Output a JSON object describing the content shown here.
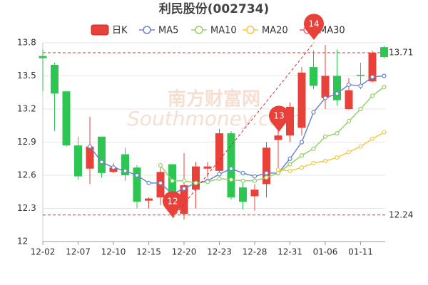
{
  "chart_data": {
    "type": "candlestick",
    "title": "利民股份(002734)",
    "watermark": [
      "南方财富网",
      "Southmoney.com"
    ],
    "categories": [
      "12-02",
      null,
      null,
      "12-07",
      null,
      null,
      "12-10",
      null,
      null,
      "12-15",
      null,
      null,
      "12-20",
      null,
      null,
      "12-23",
      null,
      null,
      "12-28",
      null,
      null,
      "12-31",
      null,
      null,
      "01-06",
      null,
      null,
      "01-11",
      null,
      null
    ],
    "candle_name": "日K",
    "up_color": "#e8413a",
    "down_color": "#2dc653",
    "open": [
      13.68,
      13.6,
      13.36,
      12.87,
      12.66,
      12.95,
      12.63,
      12.79,
      12.67,
      12.37,
      12.4,
      12.7,
      12.25,
      12.47,
      12.66,
      12.64,
      12.98,
      12.49,
      12.41,
      12.52,
      12.92,
      12.96,
      13.03,
      13.58,
      13.3,
      13.5,
      13.2,
      13.51,
      13.45,
      13.76
    ],
    "close": [
      13.66,
      13.34,
      12.87,
      12.59,
      12.86,
      12.62,
      12.67,
      12.6,
      12.36,
      12.39,
      12.63,
      12.34,
      12.51,
      12.68,
      12.68,
      12.98,
      12.4,
      12.36,
      12.47,
      12.85,
      12.96,
      13.22,
      13.53,
      13.41,
      13.5,
      13.28,
      13.37,
      13.5,
      13.71,
      13.67
    ],
    "high": [
      13.74,
      13.62,
      13.36,
      12.95,
      13.13,
      12.95,
      12.71,
      12.85,
      12.69,
      12.4,
      12.7,
      12.7,
      12.8,
      12.72,
      12.72,
      13.02,
      13.0,
      12.53,
      12.52,
      12.9,
      13.08,
      13.26,
      13.58,
      13.73,
      13.78,
      13.74,
      13.48,
      13.62,
      13.73,
      13.77
    ],
    "low": [
      13.36,
      13.0,
      12.86,
      12.56,
      12.52,
      12.58,
      12.62,
      12.55,
      12.3,
      12.3,
      12.33,
      12.24,
      12.2,
      12.3,
      12.58,
      12.55,
      12.38,
      12.29,
      12.28,
      12.4,
      12.61,
      12.9,
      12.96,
      13.38,
      13.2,
      13.23,
      13.19,
      13.38,
      13.44,
      13.66
    ],
    "ma_series": [
      {
        "name": "MA5",
        "color": "#6b86c9",
        "values": [
          null,
          null,
          null,
          null,
          12.86,
          12.72,
          12.67,
          12.64,
          12.6,
          12.53,
          12.53,
          12.43,
          12.48,
          12.53,
          12.55,
          12.61,
          12.66,
          12.62,
          12.59,
          12.62,
          12.62,
          12.75,
          12.9,
          13.17,
          13.3,
          13.34,
          13.42,
          13.41,
          13.49,
          13.5
        ]
      },
      {
        "name": "MA10",
        "color": "#96d06a",
        "values": [
          null,
          null,
          null,
          null,
          null,
          null,
          null,
          null,
          null,
          null,
          12.69,
          12.55,
          12.55,
          12.53,
          12.54,
          12.57,
          12.56,
          12.55,
          12.55,
          12.58,
          12.62,
          12.7,
          12.78,
          12.84,
          12.95,
          12.98,
          13.09,
          13.2,
          13.32,
          13.4
        ]
      },
      {
        "name": "MA20",
        "color": "#f5c842",
        "values": [
          null,
          null,
          null,
          null,
          null,
          null,
          null,
          null,
          null,
          null,
          null,
          null,
          null,
          null,
          null,
          null,
          null,
          null,
          null,
          null,
          12.65,
          12.64,
          12.67,
          12.71,
          12.73,
          12.76,
          12.81,
          12.86,
          12.93,
          12.99
        ]
      },
      {
        "name": "MA30",
        "color": "#e8657a",
        "values": [
          null,
          null,
          null,
          null,
          null,
          null,
          null,
          null,
          null,
          null,
          null,
          null,
          null,
          null,
          null,
          null,
          null,
          null,
          null,
          null,
          null,
          null,
          null,
          null,
          null,
          null,
          null,
          null,
          null,
          null
        ]
      }
    ],
    "reference_lines": [
      13.71,
      12.24
    ],
    "pins": [
      "12",
      "13",
      "14"
    ],
    "ylim": [
      12,
      13.8
    ],
    "yticks": [
      12,
      12.3,
      12.6,
      12.9,
      13.2,
      13.5,
      13.8
    ],
    "grid": true
  }
}
